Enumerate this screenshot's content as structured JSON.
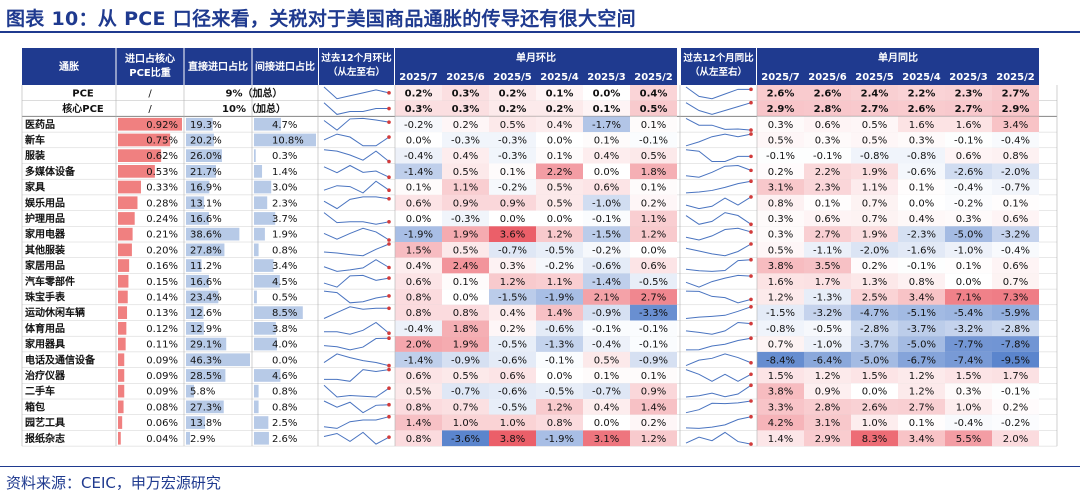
{
  "title": "图表 10：从 PCE 口径来看，关税对于美国商品通胀的传导还有很大空间",
  "source": "资料来源：CEIC，申万宏源研究",
  "colors": {
    "header_bg": "#1f3a8f",
    "header_text": "#ffffff",
    "title": "#1f3a8f",
    "pos": "#e8434f",
    "neg": "#3e6fc4",
    "bar_red": "#f08080",
    "bar_blue": "#7b9fd3"
  },
  "chart_data": {
    "type": "table",
    "headers": {
      "category": "通胀",
      "core_weight": "进口占核心PCE比重",
      "direct": "直接进口占比",
      "indirect": "间接进口占比",
      "trend_mom": "过去12个月环比（从左至右）",
      "mom_group": "单月环比",
      "trend_yoy": "过去12个月同比（从左至右）",
      "yoy_group": "单月同比",
      "months": [
        "2025/7",
        "2025/6",
        "2025/5",
        "2025/4",
        "2025/3",
        "2025/2"
      ]
    },
    "summary_rows": [
      {
        "name": "PCE",
        "weight": "/",
        "note": "9%（加总）",
        "mom": [
          0.2,
          0.3,
          0.2,
          0.1,
          0.0,
          0.4
        ],
        "yoy": [
          2.6,
          2.6,
          2.4,
          2.2,
          2.3,
          2.7
        ]
      },
      {
        "name": "核心PCE",
        "weight": "/",
        "note": "10%（加总）",
        "mom": [
          0.3,
          0.3,
          0.2,
          0.2,
          0.1,
          0.5
        ],
        "yoy": [
          2.9,
          2.8,
          2.7,
          2.6,
          2.7,
          2.9
        ]
      }
    ],
    "rows": [
      {
        "name": "医药品",
        "weight": 0.92,
        "direct": 19.3,
        "indirect": 4.7,
        "mom": [
          -0.2,
          0.2,
          0.5,
          0.4,
          -1.7,
          0.1
        ],
        "yoy": [
          0.3,
          0.6,
          0.5,
          1.6,
          1.6,
          3.4
        ]
      },
      {
        "name": "新车",
        "weight": 0.75,
        "direct": 20.2,
        "indirect": 10.8,
        "mom": [
          0.0,
          -0.3,
          -0.3,
          0.0,
          0.1,
          -0.1
        ],
        "yoy": [
          0.5,
          0.3,
          0.5,
          0.3,
          -0.1,
          -0.4
        ]
      },
      {
        "name": "服装",
        "weight": 0.62,
        "direct": 26.0,
        "indirect": 0.3,
        "mom": [
          -0.4,
          0.4,
          -0.3,
          0.1,
          0.4,
          0.5
        ],
        "yoy": [
          -0.1,
          -0.1,
          -0.8,
          -0.8,
          0.6,
          0.8
        ]
      },
      {
        "name": "多媒体设备",
        "weight": 0.53,
        "direct": 21.7,
        "indirect": 1.4,
        "mom": [
          -1.4,
          0.5,
          0.1,
          2.2,
          0.0,
          1.8
        ],
        "yoy": [
          0.2,
          2.2,
          1.9,
          -0.6,
          -2.6,
          -2.0
        ]
      },
      {
        "name": "家具",
        "weight": 0.33,
        "direct": 16.9,
        "indirect": 3.0,
        "mom": [
          0.1,
          1.1,
          -0.2,
          0.5,
          0.6,
          0.1
        ],
        "yoy": [
          3.1,
          2.3,
          1.1,
          0.1,
          -0.4,
          -0.7
        ]
      },
      {
        "name": "娱乐用品",
        "weight": 0.28,
        "direct": 13.1,
        "indirect": 2.3,
        "mom": [
          0.6,
          0.9,
          0.9,
          0.5,
          -1.0,
          0.2
        ],
        "yoy": [
          0.8,
          0.1,
          0.7,
          0.0,
          -0.2,
          0.1
        ]
      },
      {
        "name": "护理用品",
        "weight": 0.24,
        "direct": 16.6,
        "indirect": 3.7,
        "mom": [
          0.0,
          -0.3,
          0.0,
          0.0,
          -0.1,
          1.1
        ],
        "yoy": [
          0.3,
          0.6,
          0.7,
          0.4,
          0.3,
          0.6
        ]
      },
      {
        "name": "家用电器",
        "weight": 0.21,
        "direct": 38.6,
        "indirect": 1.9,
        "mom": [
          -1.9,
          1.9,
          3.6,
          1.2,
          -1.5,
          1.2
        ],
        "yoy": [
          0.3,
          2.7,
          1.9,
          -2.3,
          -5.0,
          -3.2
        ]
      },
      {
        "name": "其他服装",
        "weight": 0.2,
        "direct": 27.8,
        "indirect": 0.8,
        "mom": [
          1.5,
          0.5,
          -0.7,
          -0.5,
          -0.2,
          0.0
        ],
        "yoy": [
          0.5,
          -1.1,
          -2.0,
          -1.6,
          -1.0,
          -0.4
        ]
      },
      {
        "name": "家居用品",
        "weight": 0.16,
        "direct": 11.2,
        "indirect": 3.4,
        "mom": [
          0.4,
          2.4,
          0.3,
          -0.2,
          -0.6,
          0.6
        ],
        "yoy": [
          3.8,
          3.5,
          0.2,
          -0.1,
          0.1,
          0.6
        ]
      },
      {
        "name": "汽车零部件",
        "weight": 0.15,
        "direct": 16.6,
        "indirect": 4.5,
        "mom": [
          0.6,
          0.1,
          1.2,
          1.1,
          -1.4,
          -0.5
        ],
        "yoy": [
          1.6,
          1.7,
          1.3,
          0.8,
          0.0,
          0.7
        ]
      },
      {
        "name": "珠宝手表",
        "weight": 0.14,
        "direct": 23.4,
        "indirect": 0.5,
        "mom": [
          0.8,
          0.0,
          -1.5,
          -1.9,
          2.1,
          2.7
        ],
        "yoy": [
          1.2,
          -1.3,
          2.5,
          3.4,
          7.1,
          7.3
        ]
      },
      {
        "name": "运动休闲车辆",
        "weight": 0.13,
        "direct": 12.6,
        "indirect": 8.5,
        "mom": [
          0.8,
          0.8,
          0.4,
          1.4,
          -0.9,
          -3.3
        ],
        "yoy": [
          -1.5,
          -3.2,
          -4.7,
          -5.1,
          -5.4,
          -5.9
        ]
      },
      {
        "name": "体育用品",
        "weight": 0.12,
        "direct": 12.9,
        "indirect": 3.8,
        "mom": [
          -0.4,
          1.8,
          0.2,
          -0.6,
          -0.1,
          -0.1
        ],
        "yoy": [
          -0.8,
          -0.5,
          -2.8,
          -3.7,
          -3.2,
          -2.8
        ]
      },
      {
        "name": "家用器具",
        "weight": 0.11,
        "direct": 29.1,
        "indirect": 4.0,
        "mom": [
          2.0,
          1.9,
          -0.5,
          -1.3,
          -0.4,
          -0.1
        ],
        "yoy": [
          0.7,
          -1.0,
          -3.7,
          -5.0,
          -7.7,
          -7.8
        ]
      },
      {
        "name": "电话及通信设备",
        "weight": 0.09,
        "direct": 46.3,
        "indirect": 0.0,
        "mom": [
          -1.4,
          -0.9,
          -0.6,
          -0.1,
          0.5,
          -0.9
        ],
        "yoy": [
          -8.4,
          -6.4,
          -5.0,
          -6.7,
          -7.4,
          -9.5
        ]
      },
      {
        "name": "治疗仪器",
        "weight": 0.09,
        "direct": 28.5,
        "indirect": 4.6,
        "mom": [
          0.6,
          0.5,
          0.6,
          0.0,
          0.1,
          0.1
        ],
        "yoy": [
          1.5,
          1.2,
          1.5,
          1.2,
          1.5,
          1.7
        ]
      },
      {
        "name": "二手车",
        "weight": 0.09,
        "direct": 5.8,
        "indirect": 0.8,
        "mom": [
          0.5,
          -0.7,
          -0.6,
          -0.5,
          -0.7,
          0.9
        ],
        "yoy": [
          3.8,
          0.9,
          0.0,
          1.2,
          0.3,
          -0.1
        ]
      },
      {
        "name": "箱包",
        "weight": 0.08,
        "direct": 27.3,
        "indirect": 0.8,
        "mom": [
          0.8,
          0.7,
          -0.5,
          1.2,
          0.4,
          1.4
        ],
        "yoy": [
          3.3,
          2.8,
          2.6,
          2.7,
          1.0,
          0.2
        ]
      },
      {
        "name": "园艺工具",
        "weight": 0.06,
        "direct": 13.8,
        "indirect": 2.5,
        "mom": [
          1.4,
          1.0,
          1.0,
          0.8,
          0.0,
          0.2
        ],
        "yoy": [
          4.2,
          3.1,
          1.0,
          0.1,
          -0.4,
          -0.2
        ]
      },
      {
        "name": "报纸杂志",
        "weight": 0.04,
        "direct": 2.9,
        "indirect": 2.6,
        "mom": [
          0.8,
          -3.6,
          3.8,
          -1.9,
          3.1,
          1.2
        ],
        "yoy": [
          1.4,
          2.9,
          8.3,
          3.4,
          5.5,
          2.0
        ]
      }
    ]
  }
}
